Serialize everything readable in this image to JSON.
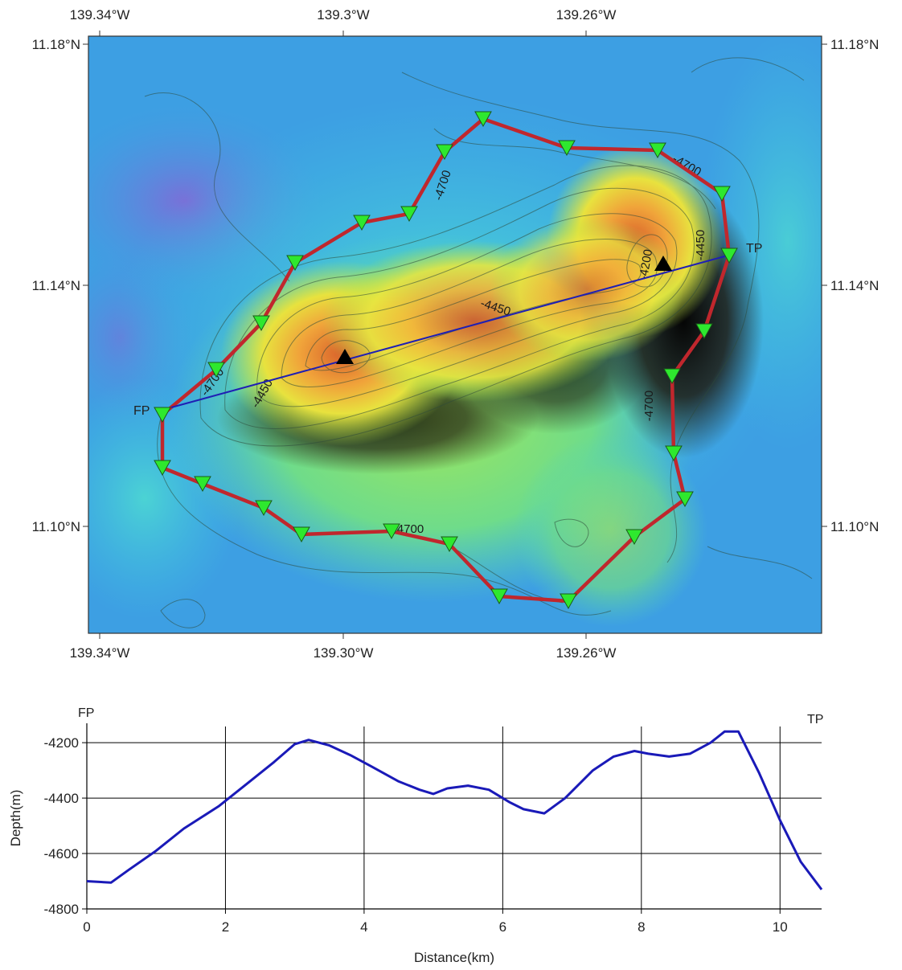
{
  "map": {
    "top_longitude_labels": [
      "139.34°W",
      "139.3°W",
      "139.26°W"
    ],
    "bottom_longitude_labels": [
      "139.34°W",
      "139.30°W",
      "139.26°W"
    ],
    "left_latitude_labels": [
      "11.18°N",
      "11.14°N",
      "11.10°N"
    ],
    "right_latitude_labels": [
      "11.18°N",
      "11.14°N",
      "11.10°N"
    ],
    "contour_labels": [
      "-4700",
      "-4700",
      "-4450",
      "-4450",
      "-4200",
      "-4450",
      "-4700",
      "-4700",
      "-4700"
    ],
    "profile_start_label": "FP",
    "profile_end_label": "TP",
    "colors": {
      "boundary_line": "#c0272d",
      "profile_line": "#1f1fb4",
      "station_marker": "#2ee82e",
      "summit_marker": "#000000"
    }
  },
  "profile": {
    "start_label": "FP",
    "end_label": "TP",
    "xlabel": "Distance(km)",
    "ylabel": "Depth(m)",
    "x_ticks": [
      "0",
      "2",
      "4",
      "6",
      "8",
      "10"
    ],
    "y_ticks": [
      "-4200",
      "-4400",
      "-4600",
      "-4800"
    ]
  },
  "chart_data": {
    "type": "line",
    "xlabel": "Distance(km)",
    "ylabel": "Depth(m)",
    "xlim": [
      0,
      10.6
    ],
    "ylim": [
      -4800,
      -4130
    ],
    "grid": true,
    "series": [
      {
        "x": [
          0,
          0.35,
          0.6,
          1.0,
          1.4,
          1.9,
          2.3,
          2.7,
          3.0,
          3.2,
          3.5,
          3.8,
          4.1,
          4.5,
          4.8,
          5.0,
          5.2,
          5.5,
          5.8,
          6.1,
          6.3,
          6.6,
          6.9,
          7.3,
          7.6,
          7.9,
          8.1,
          8.4,
          8.7,
          9.0,
          9.2,
          9.4,
          9.7,
          10.0,
          10.3,
          10.6
        ],
        "y": [
          -4700,
          -4705,
          -4660,
          -4590,
          -4510,
          -4430,
          -4350,
          -4270,
          -4205,
          -4190,
          -4210,
          -4245,
          -4285,
          -4340,
          -4370,
          -4385,
          -4365,
          -4355,
          -4370,
          -4415,
          -4440,
          -4455,
          -4400,
          -4300,
          -4250,
          -4230,
          -4240,
          -4250,
          -4240,
          -4200,
          -4160,
          -4160,
          -4310,
          -4480,
          -4630,
          -4730
        ]
      }
    ]
  }
}
